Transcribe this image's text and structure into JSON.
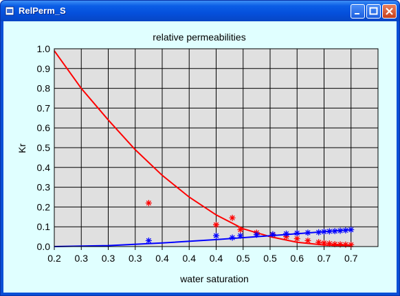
{
  "window": {
    "title": "RelPerm_S"
  },
  "chart_data": {
    "type": "scatter",
    "title": "relative permeabilities",
    "xlabel": "water saturation",
    "ylabel": "Kr",
    "xlim": [
      0.2,
      0.8
    ],
    "ylim": [
      0.0,
      1.0
    ],
    "x_tick_labels": [
      "0.2",
      "0.3",
      "0.3",
      "0.3",
      "0.4",
      "0.4",
      "0.4",
      "0.5",
      "0.5",
      "0.6",
      "0.7",
      "0.7"
    ],
    "y_tick_labels": [
      "0.0",
      "0.1",
      "0.2",
      "0.3",
      "0.4",
      "0.5",
      "0.6",
      "0.7",
      "0.8",
      "0.9",
      "1.0"
    ],
    "grid": true,
    "background": "#e0e0e0",
    "series": [
      {
        "color": "#ff0000",
        "marker": "line",
        "x": [
          0.2,
          0.25,
          0.3,
          0.35,
          0.4,
          0.45,
          0.5,
          0.55,
          0.6,
          0.65,
          0.7,
          0.75
        ],
        "y": [
          0.99,
          0.8,
          0.64,
          0.49,
          0.36,
          0.25,
          0.16,
          0.09,
          0.05,
          0.022,
          0.008,
          0.005
        ]
      },
      {
        "color": "#ff0000",
        "marker": "asterisk",
        "x": [
          0.375,
          0.53,
          0.5,
          0.545,
          0.575,
          0.605,
          0.63,
          0.65,
          0.67,
          0.69,
          0.7,
          0.71,
          0.72,
          0.73,
          0.74,
          0.75
        ],
        "y": [
          0.22,
          0.145,
          0.11,
          0.085,
          0.07,
          0.06,
          0.05,
          0.04,
          0.03,
          0.022,
          0.018,
          0.015,
          0.012,
          0.011,
          0.01,
          0.009
        ]
      },
      {
        "color": "#0000ff",
        "marker": "line",
        "x": [
          0.2,
          0.3,
          0.4,
          0.5,
          0.6,
          0.7,
          0.75
        ],
        "y": [
          0.0,
          0.005,
          0.018,
          0.035,
          0.055,
          0.075,
          0.085
        ]
      },
      {
        "color": "#0000ff",
        "marker": "asterisk",
        "x": [
          0.375,
          0.53,
          0.5,
          0.545,
          0.575,
          0.605,
          0.63,
          0.65,
          0.67,
          0.69,
          0.7,
          0.71,
          0.72,
          0.73,
          0.74,
          0.75
        ],
        "y": [
          0.03,
          0.045,
          0.055,
          0.055,
          0.06,
          0.062,
          0.065,
          0.068,
          0.07,
          0.072,
          0.075,
          0.077,
          0.078,
          0.08,
          0.082,
          0.085
        ]
      }
    ]
  }
}
